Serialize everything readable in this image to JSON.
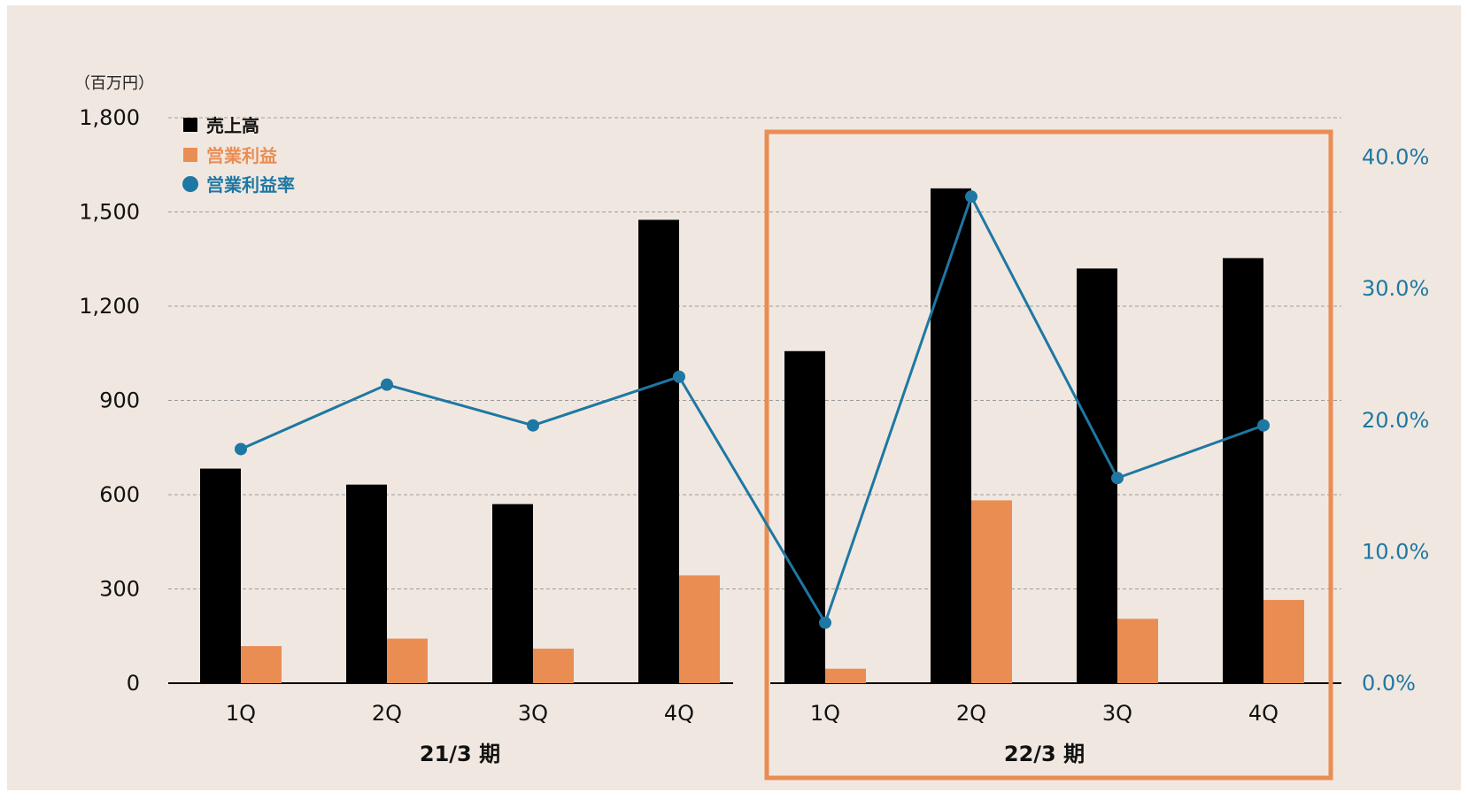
{
  "chart_data": {
    "type": "bar",
    "unit_label": "（百万円）",
    "categories": [
      "1Q",
      "2Q",
      "3Q",
      "4Q",
      "1Q",
      "2Q",
      "3Q",
      "4Q"
    ],
    "groups": [
      {
        "label": "21/3 期",
        "highlighted": false
      },
      {
        "label": "22/3 期",
        "highlighted": true
      }
    ],
    "series": [
      {
        "name": "売上高",
        "kind": "bar",
        "axis": "left",
        "color": "#000000",
        "values": [
          683,
          632,
          570,
          1475,
          1057,
          1575,
          1320,
          1353
        ]
      },
      {
        "name": "営業利益",
        "kind": "bar",
        "axis": "left",
        "color": "#ea8d53",
        "values": [
          118,
          142,
          110,
          343,
          46,
          582,
          205,
          265
        ]
      },
      {
        "name": "営業利益率",
        "kind": "line",
        "axis": "right",
        "color": "#1f77a3",
        "values": [
          17.8,
          22.7,
          19.6,
          23.3,
          4.6,
          37.0,
          15.6,
          19.6
        ]
      }
    ],
    "y_left": {
      "min": 0,
      "max": 1800,
      "ticks": [
        "0",
        "300",
        "600",
        "900",
        "1,200",
        "1,500",
        "1,800"
      ]
    },
    "y_right": {
      "min": 0,
      "max": 43,
      "ticks": [
        "0.0%",
        "10.0%",
        "20.0%",
        "30.0%",
        "40.0%"
      ],
      "tick_values": [
        0,
        10,
        20,
        30,
        40
      ]
    },
    "grid": true,
    "legend_position": "top-left",
    "colors": {
      "background": "#f0e8e0",
      "highlight_frame": "#ea8d53",
      "axis": "#000000",
      "grid": "#9b9b9b",
      "right_axis_text": "#1f77a3"
    }
  }
}
